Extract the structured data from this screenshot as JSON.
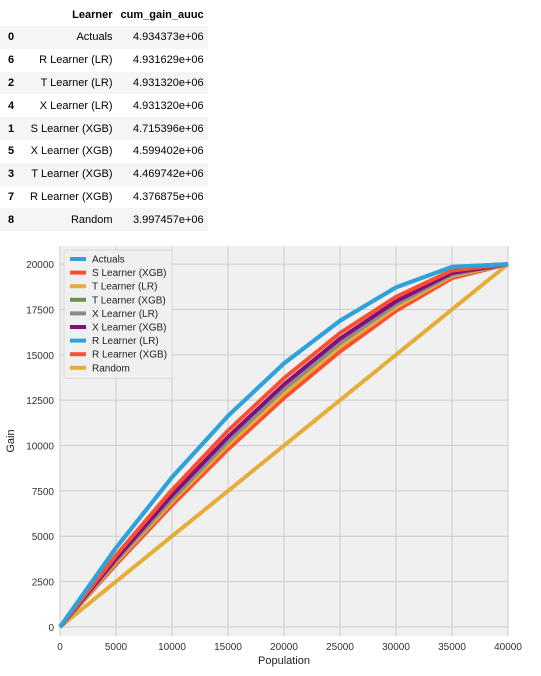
{
  "table": {
    "columns": [
      "",
      "Learner",
      "cum_gain_auuc"
    ],
    "rows": [
      {
        "index": "0",
        "learner": "Actuals",
        "value": "4.934373e+06"
      },
      {
        "index": "6",
        "learner": "R Learner (LR)",
        "value": "4.931629e+06"
      },
      {
        "index": "2",
        "learner": "T Learner (LR)",
        "value": "4.931320e+06"
      },
      {
        "index": "4",
        "learner": "X Learner (LR)",
        "value": "4.931320e+06"
      },
      {
        "index": "1",
        "learner": "S Learner (XGB)",
        "value": "4.715396e+06"
      },
      {
        "index": "5",
        "learner": "X Learner (XGB)",
        "value": "4.599402e+06"
      },
      {
        "index": "3",
        "learner": "T Learner (XGB)",
        "value": "4.469742e+06"
      },
      {
        "index": "7",
        "learner": "R Learner (XGB)",
        "value": "4.376875e+06"
      },
      {
        "index": "8",
        "learner": "Random",
        "value": "3.997457e+06"
      }
    ]
  },
  "chart_data": {
    "type": "line",
    "xlabel": "Population",
    "ylabel": "Gain",
    "xlim": [
      0,
      40000
    ],
    "ylim": [
      -500,
      21000
    ],
    "xticks": [
      0,
      5000,
      10000,
      15000,
      20000,
      25000,
      30000,
      35000,
      40000
    ],
    "yticks": [
      0,
      2500,
      5000,
      7500,
      10000,
      12500,
      15000,
      17500,
      20000
    ],
    "grid": true,
    "legend_position": "top-left",
    "x": [
      0,
      5000,
      10000,
      15000,
      20000,
      25000,
      30000,
      35000,
      40000
    ],
    "series": [
      {
        "name": "Actuals",
        "color": "#30a2da",
        "values": [
          0,
          4360,
          8250,
          11630,
          14530,
          16880,
          18720,
          19850,
          20000
        ]
      },
      {
        "name": "S Learner (XGB)",
        "color": "#fc4f30",
        "values": [
          0,
          3940,
          7550,
          10820,
          13710,
          16200,
          18200,
          19650,
          20000
        ]
      },
      {
        "name": "T Learner (LR)",
        "color": "#e5ae38",
        "values": [
          0,
          3560,
          6900,
          10030,
          12880,
          15450,
          17620,
          19350,
          20000
        ]
      },
      {
        "name": "T Learner (XGB)",
        "color": "#6d904f",
        "values": [
          0,
          3580,
          6920,
          10050,
          12900,
          15470,
          17630,
          19360,
          20000
        ]
      },
      {
        "name": "X Learner (LR)",
        "color": "#8b8b8b",
        "values": [
          0,
          3650,
          7050,
          10230,
          13110,
          15650,
          17780,
          19430,
          20000
        ]
      },
      {
        "name": "X Learner (XGB)",
        "color": "#810f7c",
        "values": [
          0,
          3760,
          7260,
          10470,
          13370,
          15890,
          17950,
          19520,
          20000
        ]
      },
      {
        "name": "R Learner (LR)",
        "color": "#30a2da",
        "values": [
          0,
          4360,
          8250,
          11630,
          14530,
          16880,
          18720,
          19850,
          20000
        ]
      },
      {
        "name": "R Learner (XGB)",
        "color": "#fc4f30",
        "values": [
          0,
          3440,
          6710,
          9790,
          12620,
          15180,
          17420,
          19230,
          20000
        ]
      },
      {
        "name": "Random",
        "color": "#e5ae38",
        "values": [
          0,
          2500,
          5000,
          7500,
          10000,
          12500,
          15000,
          17500,
          20000
        ]
      }
    ]
  }
}
